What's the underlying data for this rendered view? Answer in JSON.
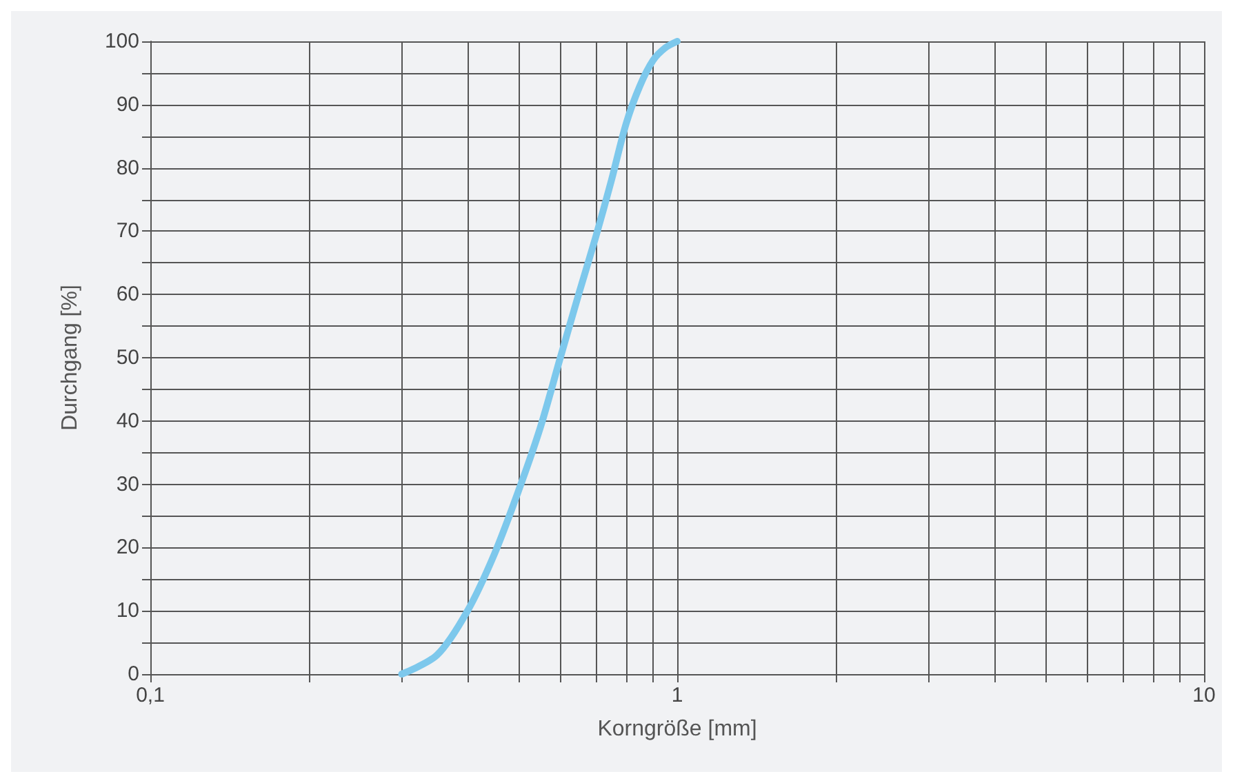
{
  "chart_data": {
    "type": "line",
    "xlabel": "Korngröße [mm]",
    "ylabel": "Durchgang [%]",
    "log": "x",
    "grid": true,
    "marker": "none",
    "line_style": "solid",
    "xlim": [
      0.1,
      10
    ],
    "ylim": [
      0,
      100
    ],
    "xticks": [
      {
        "value": 0.1,
        "label": "0,1"
      },
      {
        "value": 0.2,
        "label": null
      },
      {
        "value": 0.3,
        "label": null
      },
      {
        "value": 0.4,
        "label": null
      },
      {
        "value": 0.5,
        "label": null
      },
      {
        "value": 0.6,
        "label": null
      },
      {
        "value": 0.7,
        "label": null
      },
      {
        "value": 0.8,
        "label": null
      },
      {
        "value": 0.9,
        "label": null
      },
      1,
      {
        "value": 2,
        "label": null
      },
      {
        "value": 3,
        "label": null
      },
      {
        "value": 4,
        "label": null
      },
      {
        "value": 5,
        "label": null
      },
      {
        "value": 6,
        "label": null
      },
      {
        "value": 7,
        "label": null
      },
      {
        "value": 8,
        "label": null
      },
      {
        "value": 9,
        "label": null
      },
      10
    ],
    "yticks": [
      0,
      {
        "value": 5,
        "label": null
      },
      10,
      {
        "value": 15,
        "label": null
      },
      20,
      {
        "value": 25,
        "label": null
      },
      30,
      {
        "value": 35,
        "label": null
      },
      40,
      {
        "value": 45,
        "label": null
      },
      50,
      {
        "value": 55,
        "label": null
      },
      60,
      {
        "value": 65,
        "label": null
      },
      70,
      {
        "value": 75,
        "label": null
      },
      80,
      {
        "value": 85,
        "label": null
      },
      90,
      {
        "value": 95,
        "label": null
      },
      100
    ],
    "series": [
      {
        "color": "#7dc8ec",
        "x": [
          0.3,
          0.35,
          0.4,
          0.45,
          0.5,
          0.55,
          0.6,
          0.65,
          0.7,
          0.75,
          0.8,
          0.85,
          0.9,
          0.95,
          1
        ],
        "values": [
          0,
          3,
          10,
          19,
          29,
          39,
          50,
          60,
          69,
          78,
          87,
          93,
          97,
          99,
          100
        ]
      }
    ]
  }
}
